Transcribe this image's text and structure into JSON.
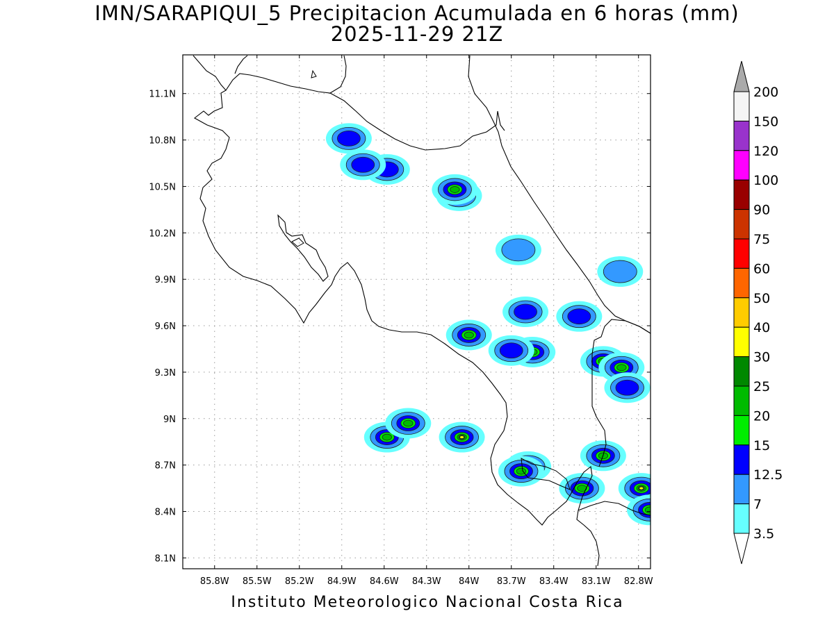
{
  "title": {
    "line1": "IMN/SARAPIQUI_5 Precipitacion Acumulada en 6 horas (mm)",
    "line2": "2025-11-29 21Z"
  },
  "credit": "Instituto Meteorologico Nacional Costa Rica",
  "map": {
    "lon_range": [
      -86.025,
      -82.715
    ],
    "lat_range": [
      8.03,
      11.35
    ],
    "lon_ticks": [
      {
        "value": -85.8,
        "label": "85.8W"
      },
      {
        "value": -85.5,
        "label": "85.5W"
      },
      {
        "value": -85.2,
        "label": "85.2W"
      },
      {
        "value": -84.9,
        "label": "84.9W"
      },
      {
        "value": -84.6,
        "label": "84.6W"
      },
      {
        "value": -84.3,
        "label": "84.3W"
      },
      {
        "value": -84.0,
        "label": "84W"
      },
      {
        "value": -83.7,
        "label": "83.7W"
      },
      {
        "value": -83.4,
        "label": "83.4W"
      },
      {
        "value": -83.1,
        "label": "83.1W"
      },
      {
        "value": -82.8,
        "label": "82.8W"
      }
    ],
    "lat_ticks": [
      {
        "value": 11.1,
        "label": "11.1N"
      },
      {
        "value": 10.8,
        "label": "10.8N"
      },
      {
        "value": 10.5,
        "label": "10.5N"
      },
      {
        "value": 10.2,
        "label": "10.2N"
      },
      {
        "value": 9.9,
        "label": "9.9N"
      },
      {
        "value": 9.6,
        "label": "9.6N"
      },
      {
        "value": 9.3,
        "label": "9.3N"
      },
      {
        "value": 9.0,
        "label": "9N"
      },
      {
        "value": 8.7,
        "label": "8.7N"
      },
      {
        "value": 8.4,
        "label": "8.4N"
      },
      {
        "value": 8.1,
        "label": "8.1N"
      }
    ],
    "grid": "dotted",
    "precip_cells": [
      {
        "lon": -84.85,
        "lat": 10.81,
        "level": 12.5
      },
      {
        "lon": -84.58,
        "lat": 10.61,
        "level": 12.5
      },
      {
        "lon": -84.07,
        "lat": 10.44,
        "level": 30
      },
      {
        "lon": -84.1,
        "lat": 10.48,
        "level": 20
      },
      {
        "lon": -84.75,
        "lat": 10.64,
        "level": 12.5
      },
      {
        "lon": -83.65,
        "lat": 10.09,
        "level": 7
      },
      {
        "lon": -83.6,
        "lat": 9.69,
        "level": 12.5
      },
      {
        "lon": -84.0,
        "lat": 9.54,
        "level": 20
      },
      {
        "lon": -83.55,
        "lat": 9.43,
        "level": 20
      },
      {
        "lon": -83.7,
        "lat": 9.44,
        "level": 12.5
      },
      {
        "lon": -83.22,
        "lat": 9.66,
        "level": 12.5
      },
      {
        "lon": -83.05,
        "lat": 9.37,
        "level": 20
      },
      {
        "lon": -82.92,
        "lat": 9.33,
        "level": 20
      },
      {
        "lon": -82.88,
        "lat": 9.2,
        "level": 12.5
      },
      {
        "lon": -84.05,
        "lat": 8.88,
        "level": 30
      },
      {
        "lon": -84.58,
        "lat": 8.88,
        "level": 20
      },
      {
        "lon": -84.43,
        "lat": 8.97,
        "level": 20
      },
      {
        "lon": -83.58,
        "lat": 8.69,
        "level": 30
      },
      {
        "lon": -83.63,
        "lat": 8.66,
        "level": 20
      },
      {
        "lon": -83.05,
        "lat": 8.76,
        "level": 20
      },
      {
        "lon": -82.78,
        "lat": 8.55,
        "level": 30
      },
      {
        "lon": -82.72,
        "lat": 8.41,
        "level": 20
      },
      {
        "lon": -83.2,
        "lat": 8.55,
        "level": 20
      },
      {
        "lon": -82.93,
        "lat": 9.95,
        "level": 7
      }
    ]
  },
  "legend": {
    "levels": [
      "200",
      "150",
      "120",
      "100",
      "90",
      "75",
      "60",
      "50",
      "40",
      "30",
      "25",
      "20",
      "15",
      "12.5",
      "7",
      "3.5"
    ],
    "colors": [
      "#f5f5f5",
      "#9933cc",
      "#ff00ff",
      "#990000",
      "#cc3300",
      "#ff0000",
      "#ff6600",
      "#ffcc00",
      "#ffff00",
      "#008800",
      "#00bb00",
      "#00ee00",
      "#0000ff",
      "#3399ff",
      "#66ffff"
    ],
    "over_color": "#aaaaaa",
    "under_color": "#ffffff"
  }
}
